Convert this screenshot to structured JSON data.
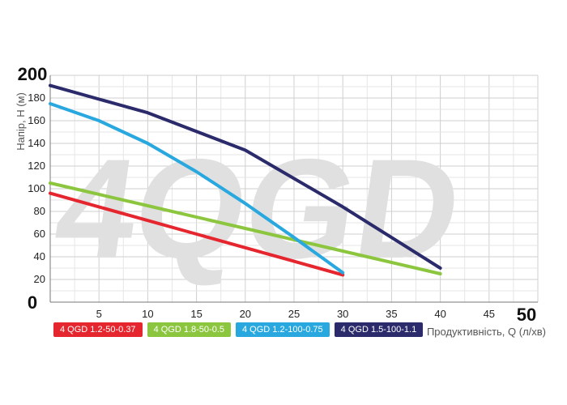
{
  "chart_data": {
    "type": "line",
    "watermark": "4QGD",
    "xlabel": "Продуктивність, Q (л/хв)",
    "ylabel": "Напір, H (м)",
    "xlim": [
      0,
      50
    ],
    "ylim": [
      0,
      200
    ],
    "x_ticks": [
      "0",
      "5",
      "10",
      "15",
      "20",
      "25",
      "30",
      "35",
      "40",
      "45",
      "50"
    ],
    "y_ticks": [
      "0",
      "20",
      "40",
      "60",
      "80",
      "100",
      "120",
      "140",
      "160",
      "180",
      "200"
    ],
    "grid": true,
    "legend_position": "bottom-left",
    "series": [
      {
        "name": "4 QGD 1.2-50-0.37",
        "color": "#e5262e",
        "points": [
          [
            0,
            96
          ],
          [
            5,
            84
          ],
          [
            10,
            72
          ],
          [
            15,
            60
          ],
          [
            20,
            48
          ],
          [
            25,
            36
          ],
          [
            30,
            24
          ]
        ]
      },
      {
        "name": "4 QGD 1.8-50-0.5",
        "color": "#8cc63f",
        "points": [
          [
            0,
            105
          ],
          [
            10,
            85
          ],
          [
            20,
            65
          ],
          [
            30,
            45
          ],
          [
            40,
            25
          ]
        ]
      },
      {
        "name": "4 QGD 1.2-100-0.75",
        "color": "#29a8e0",
        "points": [
          [
            0,
            175
          ],
          [
            5,
            160
          ],
          [
            10,
            140
          ],
          [
            15,
            115
          ],
          [
            20,
            87
          ],
          [
            25,
            57
          ],
          [
            30,
            26
          ]
        ]
      },
      {
        "name": "4 QGD 1.5-100-1.1",
        "color": "#2b2a6b",
        "points": [
          [
            0,
            191
          ],
          [
            10,
            167
          ],
          [
            20,
            134
          ],
          [
            30,
            84
          ],
          [
            40,
            30
          ]
        ]
      }
    ]
  }
}
